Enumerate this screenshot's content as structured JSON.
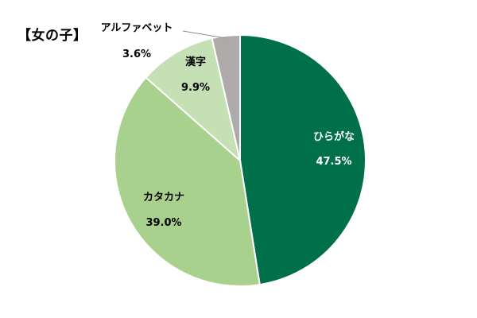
{
  "chart_data": {
    "type": "pie",
    "title": "【女の子】",
    "start": "12 o'clock",
    "direction": "clockwise",
    "slices": [
      {
        "label": "ひらがな",
        "value": 47.5,
        "value_label": "47.5%",
        "color": "#00704A",
        "text_color": "#ffffff"
      },
      {
        "label": "カタカナ",
        "value": 39.0,
        "value_label": "39.0%",
        "color": "#A9D18E",
        "text_color": "#000000"
      },
      {
        "label": "漢字",
        "value": 9.9,
        "value_label": "9.9%",
        "color": "#C5E0B4",
        "text_color": "#000000"
      },
      {
        "label": "アルファベット",
        "value": 3.6,
        "value_label": "3.6%",
        "color": "#AEAAAA",
        "text_color": "#000000"
      }
    ]
  }
}
